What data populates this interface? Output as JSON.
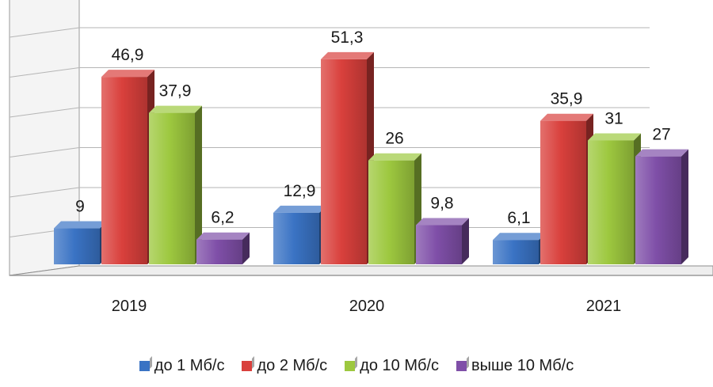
{
  "chart_data": {
    "type": "bar",
    "categories": [
      "2019",
      "2020",
      "2021"
    ],
    "series": [
      {
        "name": "до 1 Мб/с",
        "values": [
          9,
          12.9,
          6.1
        ],
        "labels": [
          "9",
          "12,9",
          "6,1"
        ],
        "color": "#3a73c4"
      },
      {
        "name": "до 2 Мб/с",
        "values": [
          46.9,
          51.3,
          35.9
        ],
        "labels": [
          "46,9",
          "51,3",
          "35,9"
        ],
        "color": "#d9403c"
      },
      {
        "name": "до 10 Мб/с",
        "values": [
          37.9,
          26,
          31
        ],
        "labels": [
          "37,9",
          "26",
          "31"
        ],
        "color": "#9dc83f"
      },
      {
        "name": "выше 10 Мб/с",
        "values": [
          6.2,
          9.8,
          27
        ],
        "labels": [
          "6,2",
          "9,8",
          "27"
        ],
        "color": "#7f4fa8"
      }
    ],
    "ylim": [
      0,
      60
    ],
    "grid": true,
    "legend_position": "bottom",
    "title": "",
    "xlabel": "",
    "ylabel": ""
  }
}
